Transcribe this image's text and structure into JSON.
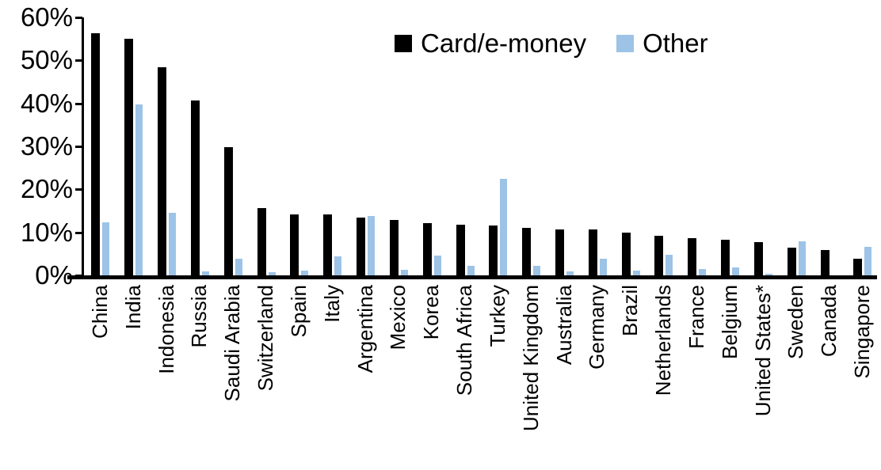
{
  "chart_data": {
    "type": "bar",
    "title": "",
    "xlabel": "",
    "ylabel": "",
    "ylim": [
      0,
      60
    ],
    "yticks": [
      "0%",
      "10%",
      "20%",
      "30%",
      "40%",
      "50%",
      "60%"
    ],
    "grid": false,
    "legend_position": "top-center",
    "categories": [
      "China",
      "India",
      "Indonesia",
      "Russia",
      "Saudi Arabia",
      "Switzerland",
      "Spain",
      "Italy",
      "Argentina",
      "Mexico",
      "Korea",
      "South Africa",
      "Turkey",
      "United Kingdom",
      "Australia",
      "Germany",
      "Brazil",
      "Netherlands",
      "France",
      "Belgium",
      "United States*",
      "Sweden",
      "Canada",
      "Singapore"
    ],
    "series": [
      {
        "name": "Card/e-money",
        "color": "#000000",
        "values": [
          56.4,
          55.1,
          48.4,
          40.6,
          29.9,
          15.6,
          14.2,
          14.1,
          13.4,
          12.9,
          12.2,
          11.7,
          11.6,
          11.0,
          10.7,
          10.6,
          9.9,
          9.2,
          8.6,
          8.2,
          7.8,
          6.5,
          5.9,
          3.8
        ]
      },
      {
        "name": "Other",
        "color": "#9DC3E6",
        "values": [
          12.3,
          39.7,
          14.5,
          1.0,
          3.9,
          0.8,
          1.1,
          4.5,
          13.8,
          1.3,
          4.6,
          2.3,
          22.5,
          2.3,
          1.0,
          3.9,
          1.1,
          4.7,
          1.4,
          1.9,
          0.4,
          8.0,
          0.0,
          6.6
        ]
      }
    ]
  }
}
